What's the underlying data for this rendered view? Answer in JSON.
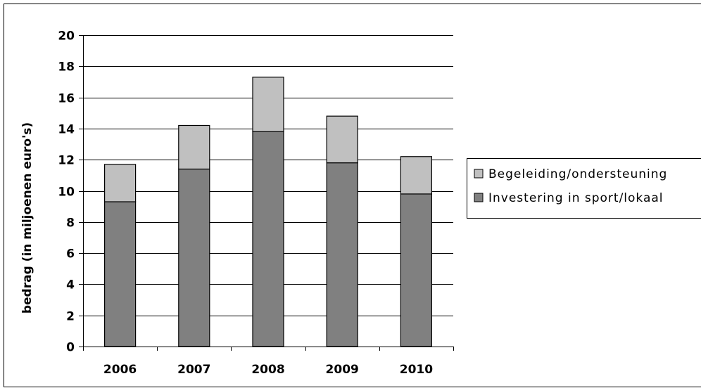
{
  "chart_data": {
    "type": "bar",
    "stacked": true,
    "categories": [
      "2006",
      "2007",
      "2008",
      "2009",
      "2010"
    ],
    "series": [
      {
        "name": "Investering in sport/lokaal",
        "values": [
          9.3,
          11.4,
          13.8,
          11.8,
          9.8
        ],
        "color": "#808080"
      },
      {
        "name": "Begeleiding/ondersteuning",
        "values": [
          2.4,
          2.8,
          3.5,
          3.0,
          2.4
        ],
        "color": "#c0c0c0"
      }
    ],
    "legend_order": [
      "Begeleiding/ondersteuning",
      "Investering in sport/lokaal"
    ],
    "title": "",
    "xlabel": "",
    "ylabel": "bedrag (in miljoenen euro's)",
    "ylim": [
      0,
      20
    ],
    "yticks": [
      "0",
      "2",
      "4",
      "6",
      "8",
      "10",
      "12",
      "14",
      "16",
      "18",
      "20"
    ],
    "grid": true,
    "legend_position": "right"
  }
}
